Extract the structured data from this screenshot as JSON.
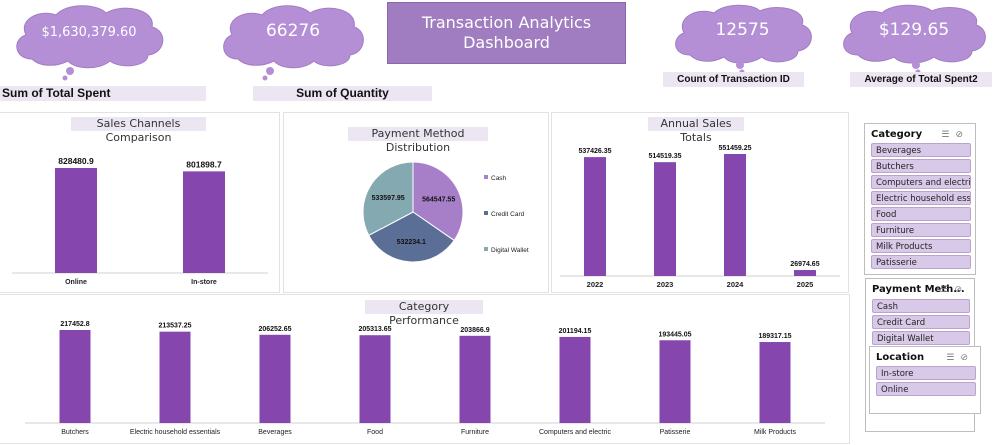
{
  "title": "Transaction Analytics Dashboard",
  "kpis": {
    "total_spent": {
      "value": "$1,630,379.60",
      "label": "Sum of Total Spent"
    },
    "quantity": {
      "value": "66276",
      "label": "Sum of Quantity"
    },
    "transactions": {
      "value": "12575",
      "label": "Count of Transaction ID"
    },
    "avg_spent": {
      "value": "$129.65",
      "label": "Average of Total Spent2"
    }
  },
  "colors": {
    "bar": "#8547ae",
    "cloud": "#b58fd6",
    "cash": "#a77fc9",
    "credit": "#5b6f96",
    "wallet": "#85a9b1"
  },
  "chart_data": [
    {
      "type": "bar",
      "title": "Sales Channels Comparison",
      "categories": [
        "Online",
        "In-store"
      ],
      "values": [
        828480.9,
        801898.7
      ],
      "labels": [
        "828480.9",
        "801898.7"
      ]
    },
    {
      "type": "pie",
      "title": "Payment Method Distribution",
      "categories": [
        "Cash",
        "Credit Card",
        "Digital Wallet"
      ],
      "values": [
        564547.55,
        532234.1,
        533597.95
      ],
      "labels": [
        "564547.55",
        "532234.1",
        "533597.95"
      ]
    },
    {
      "type": "bar",
      "title": "Annual Sales Totals",
      "categories": [
        "2022",
        "2023",
        "2024",
        "2025"
      ],
      "values": [
        537426.35,
        514519.35,
        551459.25,
        26974.65
      ],
      "labels": [
        "537426.35",
        "514519.35",
        "551459.25",
        "26974.65"
      ]
    },
    {
      "type": "bar",
      "title": "Category Performance",
      "categories": [
        "Butchers",
        "Electric household essentials",
        "Beverages",
        "Food",
        "Furniture",
        "Computers and electric",
        "Patisserie",
        "Milk Products"
      ],
      "values": [
        217452.8,
        213537.25,
        206252.65,
        205313.65,
        203866.9,
        201194.15,
        193445.05,
        189317.15
      ],
      "labels": [
        "217452.8",
        "213537.25",
        "206252.65",
        "205313.65",
        "203866.9",
        "201194.15",
        "193445.05",
        "189317.15"
      ]
    }
  ],
  "slicers": {
    "category": {
      "title": "Category",
      "items": [
        "Beverages",
        "Butchers",
        "Computers and electri...",
        "Electric household ess...",
        "Food",
        "Furniture",
        "Milk Products",
        "Patisserie"
      ]
    },
    "payment": {
      "title": "Payment Meth...",
      "items": [
        "Cash",
        "Credit Card",
        "Digital Wallet"
      ]
    },
    "location": {
      "title": "Location",
      "items": [
        "In-store",
        "Online"
      ]
    }
  }
}
